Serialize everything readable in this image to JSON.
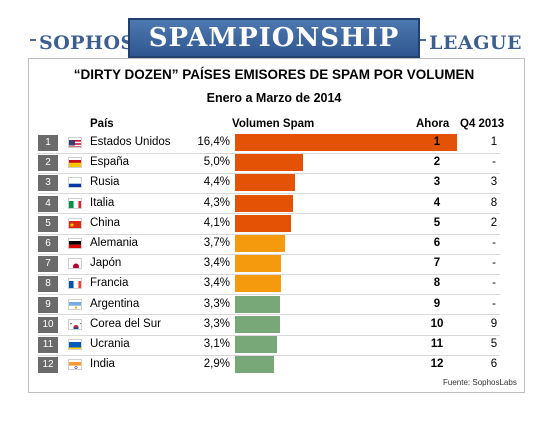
{
  "header": {
    "left": "SOPHOS",
    "center": "SPAMPIONSHIP",
    "right": "LEAGUE"
  },
  "chart_data": {
    "type": "table",
    "title": "“DIRTY DOZEN” PAÍSES EMISORES DE SPAM POR VOLUMEN",
    "subtitle": "Enero a Marzo de 2014",
    "columns": {
      "country": "País",
      "volume": "Volumen Spam",
      "now": "Ahora",
      "q4": "Q4 2013"
    },
    "rows": [
      {
        "rank": "1",
        "flag": "us",
        "country": "Estados Unidos",
        "pct_label": "16,4%",
        "value": 16.4,
        "now": "1",
        "q4": "1",
        "color": "#e35205"
      },
      {
        "rank": "2",
        "flag": "es",
        "country": "España",
        "pct_label": "5,0%",
        "value": 5.0,
        "now": "2",
        "q4": "-",
        "color": "#e35205"
      },
      {
        "rank": "3",
        "flag": "ru",
        "country": "Rusia",
        "pct_label": "4,4%",
        "value": 4.4,
        "now": "3",
        "q4": "3",
        "color": "#e35205"
      },
      {
        "rank": "4",
        "flag": "it",
        "country": "Italia",
        "pct_label": "4,3%",
        "value": 4.3,
        "now": "4",
        "q4": "8",
        "color": "#e35205"
      },
      {
        "rank": "5",
        "flag": "cn",
        "country": "China",
        "pct_label": "4,1%",
        "value": 4.1,
        "now": "5",
        "q4": "2",
        "color": "#e35205"
      },
      {
        "rank": "6",
        "flag": "de",
        "country": "Alemania",
        "pct_label": "3,7%",
        "value": 3.7,
        "now": "6",
        "q4": "-",
        "color": "#f59a0c"
      },
      {
        "rank": "7",
        "flag": "jp",
        "country": "Japón",
        "pct_label": "3,4%",
        "value": 3.4,
        "now": "7",
        "q4": "-",
        "color": "#f59a0c"
      },
      {
        "rank": "8",
        "flag": "fr",
        "country": "Francia",
        "pct_label": "3,4%",
        "value": 3.4,
        "now": "8",
        "q4": "-",
        "color": "#f59a0c"
      },
      {
        "rank": "9",
        "flag": "ar",
        "country": "Argentina",
        "pct_label": "3,3%",
        "value": 3.3,
        "now": "9",
        "q4": "-",
        "color": "#78a878"
      },
      {
        "rank": "10",
        "flag": "kr",
        "country": "Corea del Sur",
        "pct_label": "3,3%",
        "value": 3.3,
        "now": "10",
        "q4": "9",
        "color": "#78a878"
      },
      {
        "rank": "11",
        "flag": "ua",
        "country": "Ucrania",
        "pct_label": "3,1%",
        "value": 3.1,
        "now": "11",
        "q4": "5",
        "color": "#78a878"
      },
      {
        "rank": "12",
        "flag": "in",
        "country": "India",
        "pct_label": "2,9%",
        "value": 2.9,
        "now": "12",
        "q4": "6",
        "color": "#78a878"
      }
    ],
    "max_value": 16.4
  },
  "source": "Fuente: SophosLabs"
}
